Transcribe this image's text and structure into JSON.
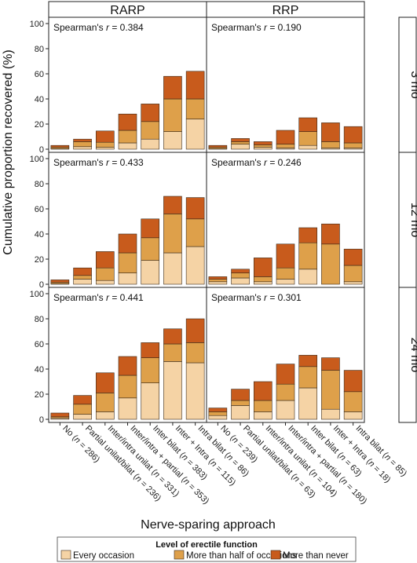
{
  "chart_data": {
    "type": "bar",
    "stacked": true,
    "ylabel": "Cumulative proportion recovered (%)",
    "xlabel": "Nerve-sparing approach",
    "ylim": [
      0,
      100
    ],
    "yticks": [
      0,
      20,
      40,
      60,
      80,
      100
    ],
    "columns": [
      "RARP",
      "RRP"
    ],
    "rows": [
      "3 mo",
      "12 mo",
      "24 mo"
    ],
    "legend": {
      "title": "Level of erectile function",
      "position": "bottom",
      "items": [
        "Every occasion",
        "More than half of occasions",
        "More than never"
      ]
    },
    "colors": [
      "#f5d3a5",
      "#dea04a",
      "#c85b1c"
    ],
    "categories": {
      "RARP": [
        "No (n = 286)",
        "Partial unilat/bilat (n = 236)",
        "Inter/intra unilat (n = 331)",
        "Inter/intra + partial (n = 353)",
        "Inter bilat (n = 383)",
        "Inter + Intra (n = 115)",
        "Intra bilat (n = 86)"
      ],
      "RRP": [
        "No (n = 239)",
        "Partial unilat/bilat (n = 63)",
        "Inter/intra unilat (n = 104)",
        "Inter/intra + partial (n = 180)",
        "Inter bilat (n = 63)",
        "Inter + Intra (n = 18)",
        "Intra bilat (n = 85)"
      ]
    },
    "panels": [
      {
        "column": "RARP",
        "row": "3 mo",
        "annotation_prefix": "Spearman's ",
        "annotation_var": "r",
        "annotation_suffix": " = 0.384",
        "series": [
          {
            "name": "Every occasion",
            "values": [
              0.5,
              2,
              1.5,
              5,
              8,
              14,
              24
            ]
          },
          {
            "name": "More than half of occasions",
            "values": [
              1,
              4,
              4,
              10,
              14,
              26,
              16
            ]
          },
          {
            "name": "More than never",
            "values": [
              1.5,
              2,
              9,
              13,
              14,
              18,
              22
            ]
          }
        ]
      },
      {
        "column": "RRP",
        "row": "3 mo",
        "annotation_prefix": "Spearman's ",
        "annotation_var": "r",
        "annotation_suffix": " = 0.190",
        "series": [
          {
            "name": "Every occasion",
            "values": [
              0.5,
              4,
              1.5,
              1,
              3,
              1,
              1
            ]
          },
          {
            "name": "More than half of occasions",
            "values": [
              1,
              2,
              2,
              3,
              11,
              5,
              4
            ]
          },
          {
            "name": "More than never",
            "values": [
              1.5,
              2.5,
              2.5,
              11,
              11,
              15,
              13
            ]
          }
        ]
      },
      {
        "column": "RARP",
        "row": "12 mo",
        "annotation_prefix": "Spearman's ",
        "annotation_var": "r",
        "annotation_suffix": " = 0.433",
        "series": [
          {
            "name": "Every occasion",
            "values": [
              0.5,
              4,
              3,
              9,
              19,
              25,
              30
            ]
          },
          {
            "name": "More than half of occasions",
            "values": [
              1,
              3,
              10,
              16,
              18,
              31,
              22
            ]
          },
          {
            "name": "More than never",
            "values": [
              2,
              6,
              13,
              15,
              15,
              14,
              17
            ]
          }
        ]
      },
      {
        "column": "RRP",
        "row": "12 mo",
        "annotation_prefix": "Spearman's ",
        "annotation_var": "r",
        "annotation_suffix": " = 0.246",
        "series": [
          {
            "name": "Every occasion",
            "values": [
              2,
              5,
              2,
              4,
              12,
              0,
              2
            ]
          },
          {
            "name": "More than half of occasions",
            "values": [
              2,
              4,
              4,
              9,
              21,
              32,
              13
            ]
          },
          {
            "name": "More than never",
            "values": [
              2,
              3,
              15,
              19,
              12,
              16,
              13
            ]
          }
        ]
      },
      {
        "column": "RARP",
        "row": "24 mo",
        "annotation_prefix": "Spearman's ",
        "annotation_var": "r",
        "annotation_suffix": " = 0.441",
        "series": [
          {
            "name": "Every occasion",
            "values": [
              1,
              4,
              6,
              17,
              29,
              46,
              45
            ]
          },
          {
            "name": "More than half of occasions",
            "values": [
              1,
              8,
              15,
              18,
              20,
              14,
              16
            ]
          },
          {
            "name": "More than never",
            "values": [
              3,
              7,
              16,
              15,
              12,
              12,
              19
            ]
          }
        ]
      },
      {
        "column": "RRP",
        "row": "24 mo",
        "annotation_prefix": "Spearman's ",
        "annotation_var": "r",
        "annotation_suffix": " = 0.301",
        "series": [
          {
            "name": "Every occasion",
            "values": [
              3,
              11,
              6,
              15,
              25,
              8,
              6
            ]
          },
          {
            "name": "More than half of occasions",
            "values": [
              3,
              4,
              9,
              13,
              17,
              31,
              16
            ]
          },
          {
            "name": "More than never",
            "values": [
              3,
              9,
              15,
              16,
              9,
              10,
              17
            ]
          }
        ]
      }
    ]
  }
}
